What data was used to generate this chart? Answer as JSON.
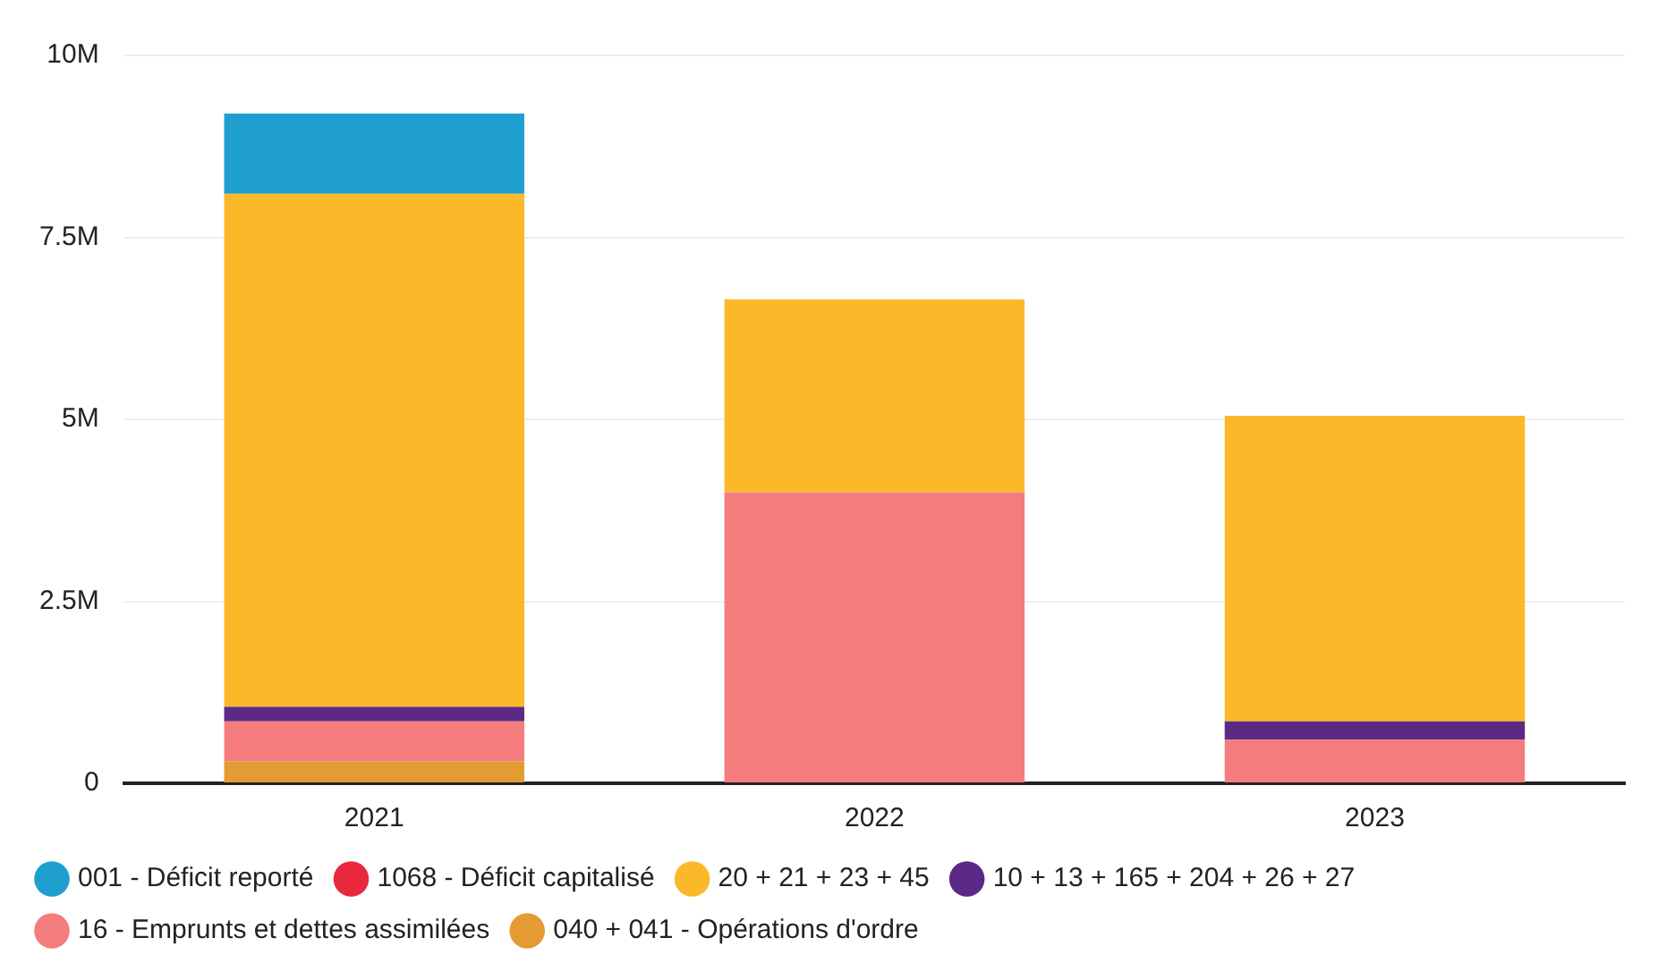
{
  "chart_data": {
    "type": "bar",
    "stacked": true,
    "categories": [
      "2021",
      "2022",
      "2023"
    ],
    "series": [
      {
        "name": "040 + 041 - Opérations d'ordre",
        "color": "#e39b32",
        "values": [
          0.3,
          0,
          0
        ]
      },
      {
        "name": "16 - Emprunts et dettes assimilées",
        "color": "#f47c7c",
        "values": [
          0.55,
          4.0,
          0.6
        ]
      },
      {
        "name": "10 + 13 + 165 + 204 + 26 + 27",
        "color": "#5b2a86",
        "values": [
          0.2,
          0,
          0.25
        ]
      },
      {
        "name": "20 + 21 + 23 + 45",
        "color": "#fbb829",
        "values": [
          7.05,
          2.65,
          4.2
        ]
      },
      {
        "name": "1068 - Déficit capitalisé",
        "color": "#e8283c",
        "values": [
          0,
          0,
          0
        ]
      },
      {
        "name": "001 - Déficit reporté",
        "color": "#1f9fd0",
        "values": [
          1.1,
          0,
          0
        ]
      }
    ],
    "ylim": [
      0,
      10
    ],
    "yticks": [
      {
        "value": 0,
        "label": "0"
      },
      {
        "value": 2.5,
        "label": "2.5M"
      },
      {
        "value": 5,
        "label": "5M"
      },
      {
        "value": 7.5,
        "label": "7.5M"
      },
      {
        "value": 10,
        "label": "10M"
      }
    ],
    "grid": "y",
    "legend": "bottom"
  }
}
